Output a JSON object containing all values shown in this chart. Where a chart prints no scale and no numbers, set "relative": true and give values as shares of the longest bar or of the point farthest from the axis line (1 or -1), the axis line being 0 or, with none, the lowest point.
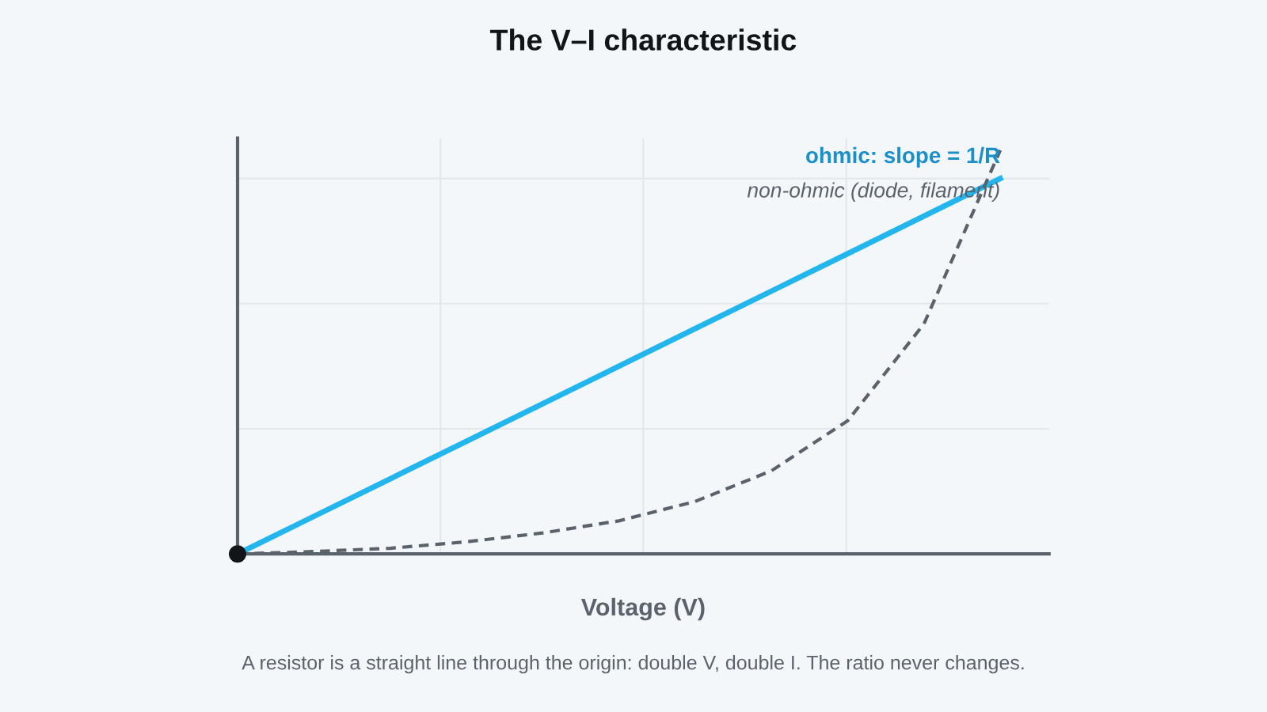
{
  "chart_data": {
    "type": "line",
    "title": "The V–I characteristic",
    "xlabel": "Voltage (V)",
    "categories": [
      null,
      null,
      null,
      null,
      null,
      null,
      null,
      null,
      null,
      null,
      null
    ],
    "relative": true,
    "grid": true,
    "tick_labels": false,
    "series": [
      {
        "name": "ohmic: slope = 1/R",
        "color": "#22b5ee",
        "line_style": "solid",
        "values": [
          0,
          0.093,
          0.186,
          0.279,
          0.372,
          0.465,
          0.558,
          0.651,
          0.744,
          0.837,
          0.93
        ]
      },
      {
        "name": "non-ohmic (diode, filament)",
        "color": "#5a626c",
        "line_style": "dashed",
        "values": [
          0,
          0.006,
          0.014,
          0.03,
          0.052,
          0.082,
          0.13,
          0.206,
          0.33,
          0.57,
          1.0
        ]
      }
    ],
    "annotations": [
      "A resistor is a straight line through the origin: double V, double I. The ratio never changes."
    ]
  }
}
